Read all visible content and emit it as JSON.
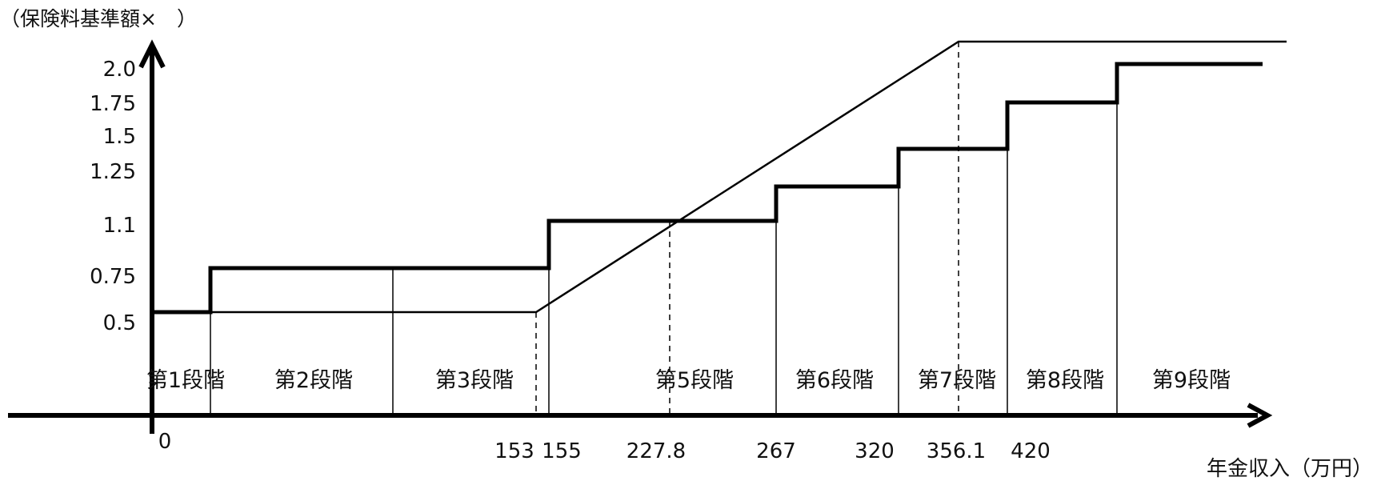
{
  "chart_data": {
    "type": "line",
    "ylabel": "（保険料基準額×　）",
    "xlabel": "年金収入（万円）",
    "y_ticks": [
      "0.5",
      "0.75",
      "1.1",
      "1.25",
      "1.5",
      "1.75",
      "2.0"
    ],
    "x_ticks": [
      "0",
      "153",
      "155",
      "227.8",
      "267",
      "320",
      "356.1",
      "420"
    ],
    "stages": [
      "第1段階",
      "第2段階",
      "第3段階",
      "第5段階",
      "第6段階",
      "第7段階",
      "第8段階",
      "第9段階"
    ],
    "series": [
      {
        "style": "thick-step",
        "points": [
          [
            0,
            0.5
          ],
          [
            80,
            0.5
          ],
          [
            80,
            0.75
          ],
          [
            155,
            0.75
          ],
          [
            155,
            1.1
          ],
          [
            267,
            1.1
          ],
          [
            267,
            1.25
          ],
          [
            320,
            1.25
          ],
          [
            320,
            1.5
          ],
          [
            375,
            1.5
          ],
          [
            375,
            1.75
          ],
          [
            420,
            1.75
          ],
          [
            420,
            2.0
          ],
          [
            485,
            2.0
          ]
        ]
      },
      {
        "style": "thin-line",
        "points": [
          [
            0,
            0.5
          ],
          [
            80,
            0.5
          ],
          [
            153,
            0.5
          ],
          [
            356.1,
            2.1
          ],
          [
            500,
            2.1
          ]
        ]
      }
    ]
  }
}
